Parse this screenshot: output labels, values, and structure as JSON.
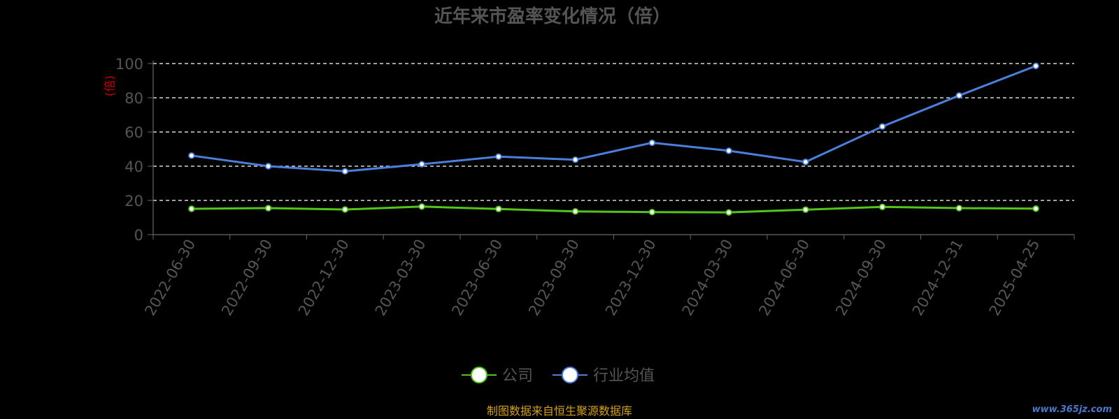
{
  "chart_data": {
    "type": "line",
    "title": "近年来市盈率变化情况（倍）",
    "ylabel": "(倍)",
    "ylim": [
      0,
      100
    ],
    "yticks": [
      0,
      20,
      40,
      60,
      80,
      100
    ],
    "grid": true,
    "legend_position": "bottom",
    "categories": [
      "2022-06-30",
      "2022-09-30",
      "2022-12-30",
      "2023-03-30",
      "2023-06-30",
      "2023-09-30",
      "2023-12-30",
      "2024-03-30",
      "2024-06-30",
      "2024-09-30",
      "2024-12-31",
      "2025-04-25"
    ],
    "series": [
      {
        "name": "公司",
        "color": "#52c41a",
        "values": [
          15.1,
          15.5,
          14.7,
          16.4,
          15.0,
          13.6,
          13.2,
          13.0,
          14.6,
          16.2,
          15.5,
          15.2
        ]
      },
      {
        "name": "行业均值",
        "color": "#4a7fdc",
        "values": [
          46.2,
          40.0,
          37.0,
          41.2,
          45.6,
          43.8,
          53.7,
          49.0,
          42.5,
          63.2,
          81.3,
          98.6
        ]
      }
    ],
    "source_note": "制图数据来自恒生聚源数据库",
    "colors": {
      "background": "#000000",
      "axis": "#666666",
      "tick_label": "#555555",
      "grid": "#ffffff",
      "ylabel": "#cc0000",
      "title": "#555555",
      "source_note": "#d4a017"
    }
  },
  "watermark": "www.365jz.com"
}
